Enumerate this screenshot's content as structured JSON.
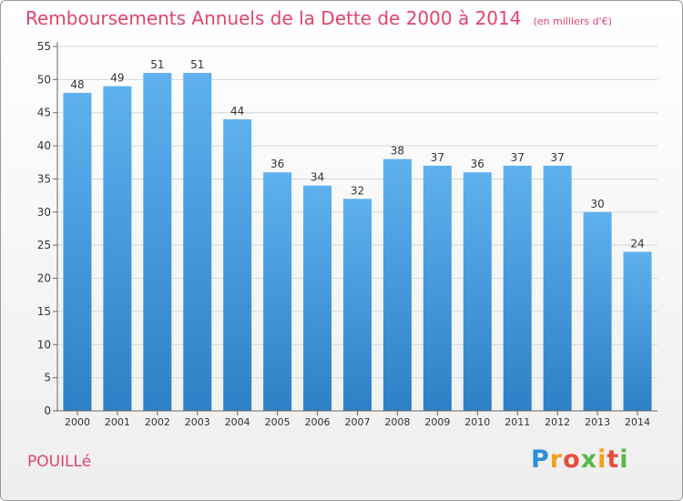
{
  "chart_data": {
    "type": "bar",
    "title": "Remboursements Annuels de la Dette de 2000 à 2014",
    "subtitle": "(en milliers d'€)",
    "categories": [
      "2000",
      "2001",
      "2002",
      "2003",
      "2004",
      "2005",
      "2006",
      "2007",
      "2008",
      "2009",
      "2010",
      "2011",
      "2012",
      "2013",
      "2014"
    ],
    "values": [
      48,
      49,
      51,
      51,
      44,
      36,
      34,
      32,
      38,
      37,
      36,
      37,
      37,
      30,
      24
    ],
    "ylim": [
      0,
      55
    ],
    "yticks": [
      0,
      5,
      10,
      15,
      20,
      25,
      30,
      35,
      40,
      45,
      50,
      55
    ],
    "grid": true,
    "bar_color_top": "#5fb0ee",
    "bar_color_bottom": "#2e80c6"
  },
  "footer": {
    "commune": "POUILLé",
    "logo": "Proxiti"
  }
}
